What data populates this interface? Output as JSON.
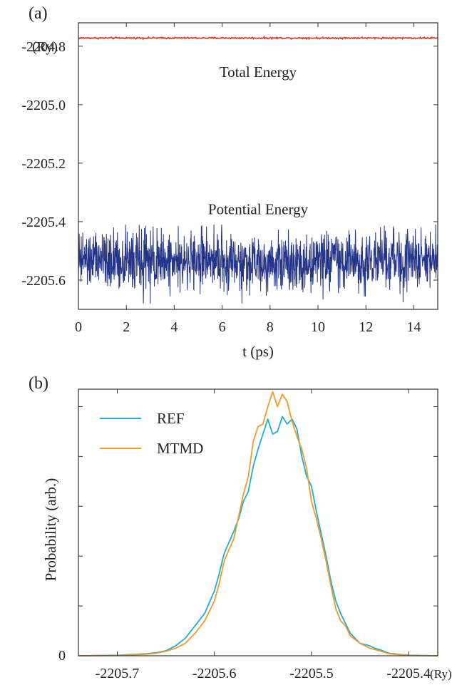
{
  "chart_data": [
    {
      "panel": "(a)",
      "type": "line",
      "xlabel": "t (ps)",
      "ylabel": "",
      "y_unit": "(Ry)",
      "xlim": [
        0,
        15
      ],
      "ylim": [
        -2205.7,
        -2204.72
      ],
      "x_ticks": [
        0,
        2,
        4,
        6,
        8,
        10,
        12,
        14
      ],
      "x_tick_labels": [
        "0",
        "2",
        "4",
        "6",
        "8",
        "10",
        "12",
        "14"
      ],
      "y_ticks": [
        -2204.8,
        -2205.0,
        -2205.2,
        -2205.4,
        -2205.6
      ],
      "y_tick_labels": [
        "-2204.8",
        "-2205.0",
        "-2205.2",
        "-2205.4",
        "-2205.6"
      ],
      "grid": false,
      "annotations": [
        "Total Energy",
        "Potential Energy"
      ],
      "series": [
        {
          "label": "Total Energy",
          "color": "#d43a2f",
          "mean": -2204.772,
          "fluctuation_range": [
            -2204.776,
            -2204.768
          ]
        },
        {
          "label": "Potential Energy",
          "color": "#25358a",
          "mean": -2205.535,
          "fluctuation_range": [
            -2205.68,
            -2205.41
          ]
        }
      ]
    },
    {
      "panel": "(b)",
      "type": "line",
      "xlabel": "",
      "x_unit": "(Ry)",
      "ylabel": "Probability (arb.)",
      "xlim": [
        -2205.74,
        -2205.37
      ],
      "ylim": [
        0,
        1.07
      ],
      "x_ticks": [
        -2205.7,
        -2205.6,
        -2205.5,
        -2205.4
      ],
      "x_tick_labels": [
        "-2205.7",
        "-2205.6",
        "-2205.5",
        "-2205.4"
      ],
      "y_tick_labels": [
        "0"
      ],
      "grid": false,
      "legend_position": "top-left",
      "series": [
        {
          "name": "REF",
          "color": "#1eaed4",
          "x": [
            -2205.74,
            -2205.7,
            -2205.67,
            -2205.66,
            -2205.65,
            -2205.64,
            -2205.63,
            -2205.62,
            -2205.61,
            -2205.6,
            -2205.595,
            -2205.59,
            -2205.58,
            -2205.575,
            -2205.57,
            -2205.565,
            -2205.56,
            -2205.555,
            -2205.55,
            -2205.545,
            -2205.54,
            -2205.535,
            -2205.53,
            -2205.525,
            -2205.52,
            -2205.515,
            -2205.51,
            -2205.505,
            -2205.5,
            -2205.495,
            -2205.49,
            -2205.485,
            -2205.48,
            -2205.475,
            -2205.47,
            -2205.465,
            -2205.46,
            -2205.45,
            -2205.44,
            -2205.435,
            -2205.43,
            -2205.42,
            -2205.4,
            -2205.37
          ],
          "values": [
            0.0,
            0.002,
            0.008,
            0.012,
            0.02,
            0.04,
            0.07,
            0.12,
            0.17,
            0.26,
            0.33,
            0.41,
            0.5,
            0.55,
            0.62,
            0.66,
            0.76,
            0.83,
            0.89,
            0.95,
            0.89,
            0.9,
            0.96,
            0.93,
            0.95,
            0.91,
            0.8,
            0.72,
            0.68,
            0.58,
            0.49,
            0.4,
            0.3,
            0.22,
            0.17,
            0.13,
            0.09,
            0.05,
            0.04,
            0.03,
            0.025,
            0.01,
            0.002,
            0.0
          ]
        },
        {
          "name": "MTMD",
          "color": "#f29a2c",
          "x": [
            -2205.74,
            -2205.7,
            -2205.67,
            -2205.66,
            -2205.65,
            -2205.64,
            -2205.63,
            -2205.62,
            -2205.61,
            -2205.6,
            -2205.595,
            -2205.59,
            -2205.58,
            -2205.575,
            -2205.57,
            -2205.565,
            -2205.56,
            -2205.555,
            -2205.55,
            -2205.545,
            -2205.54,
            -2205.535,
            -2205.53,
            -2205.525,
            -2205.52,
            -2205.515,
            -2205.51,
            -2205.505,
            -2205.5,
            -2205.495,
            -2205.49,
            -2205.485,
            -2205.48,
            -2205.475,
            -2205.47,
            -2205.465,
            -2205.46,
            -2205.45,
            -2205.44,
            -2205.435,
            -2205.43,
            -2205.42,
            -2205.4,
            -2205.37
          ],
          "values": [
            0.0,
            0.001,
            0.006,
            0.01,
            0.018,
            0.03,
            0.05,
            0.09,
            0.14,
            0.22,
            0.29,
            0.38,
            0.47,
            0.56,
            0.65,
            0.72,
            0.86,
            0.92,
            0.93,
            1.0,
            1.06,
            1.0,
            1.05,
            1.02,
            0.94,
            0.88,
            0.83,
            0.75,
            0.62,
            0.55,
            0.47,
            0.38,
            0.28,
            0.19,
            0.14,
            0.12,
            0.08,
            0.05,
            0.03,
            0.025,
            0.02,
            0.008,
            0.001,
            0.0
          ]
        }
      ]
    }
  ]
}
